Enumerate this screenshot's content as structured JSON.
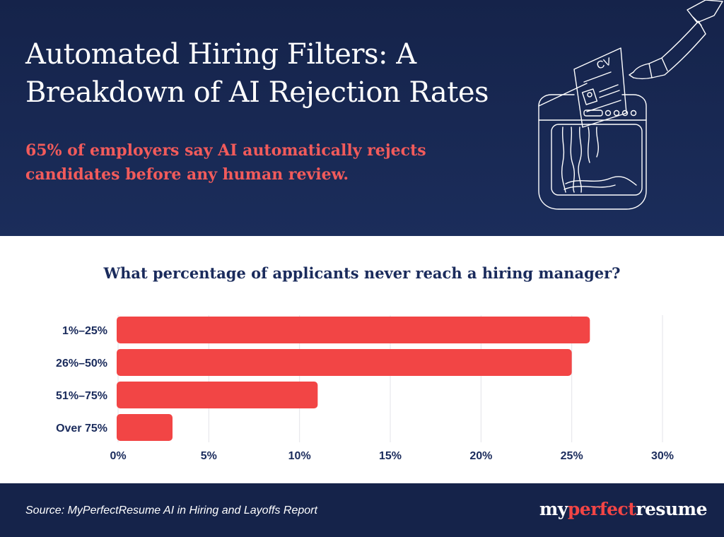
{
  "header": {
    "title": "Automated Hiring Filters: A Breakdown of AI Rejection Rates",
    "subtitle": "65% of employers say AI automatically rejects candidates before any human review.",
    "illustration": {
      "card_label": "CV",
      "icon": "resume-shredder-icon"
    }
  },
  "chart_data": {
    "type": "bar",
    "orientation": "horizontal",
    "title": "What percentage of applicants never reach a hiring manager?",
    "categories": [
      "1%–25%",
      "26%–50%",
      "51%–75%",
      "Over 75%"
    ],
    "values": [
      26,
      25,
      11,
      3
    ],
    "x_ticks": [
      "0%",
      "5%",
      "10%",
      "15%",
      "20%",
      "25%",
      "30%"
    ],
    "xlim": [
      0,
      30
    ],
    "xlabel": "",
    "ylabel": "",
    "grid": true,
    "bar_color": "#f24545"
  },
  "footer": {
    "source": "Source: MyPerfectResume AI in Hiring and Layoffs Report",
    "logo": {
      "part1": "my",
      "part2": "perfect",
      "part3": "resume"
    }
  },
  "colors": {
    "navy": "#15234a",
    "accent_red": "#f24545",
    "text_navy": "#1a2b5c",
    "grid": "#e3e3e8"
  }
}
